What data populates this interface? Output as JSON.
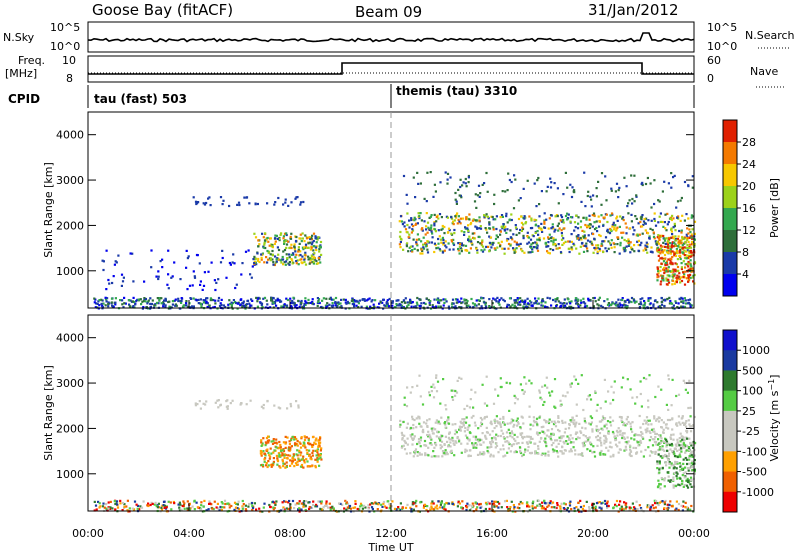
{
  "header": {
    "station": "Goose Bay (fitACF)",
    "beam": "Beam 09",
    "date": "31/Jan/2012"
  },
  "summary": {
    "nsky_label": "N.Sky",
    "nsky_ticks": [
      "10^5",
      "10^0"
    ],
    "nsearch_label": "N.Search",
    "nsearch_ticks": [
      "10^5",
      "10^0"
    ],
    "freq_label_1": "Freq.",
    "freq_label_2": "[MHz]",
    "freq_ticks": [
      "10",
      "8"
    ],
    "nave_label": "Nave",
    "nave_ticks": [
      "60",
      "0"
    ],
    "cpid_label": "CPID",
    "cpid_segments": [
      {
        "label": "tau (fast) 503",
        "start_hour": 0
      },
      {
        "label": "themis (tau) 3310",
        "start_hour": 12
      }
    ]
  },
  "colors": {
    "power": [
      "#0000ee",
      "#1a3aa8",
      "#2e6e3a",
      "#33a84f",
      "#9cd21a",
      "#f7c800",
      "#f47a00",
      "#e02000"
    ],
    "velocity": [
      "#ee0000",
      "#f06000",
      "#ffa000",
      "#c8c8c0",
      "#c8c8c0",
      "#55cc44",
      "#2e7a2e",
      "#1a3aa0",
      "#1010cc"
    ],
    "scatter_power": "#2a4aa0",
    "scatter_velocity": "#c8c8c0"
  },
  "chart_data": [
    {
      "type": "heatmap",
      "panel": "power",
      "ylabel": "Slant Range [km]",
      "xlabel": "",
      "x_range_hours": [
        0,
        24
      ],
      "ylim": [
        180,
        4500
      ],
      "y_ticks": [
        "1000",
        "2000",
        "3000",
        "4000"
      ],
      "colorbar_label": "Power [dB]",
      "colorbar_ticks": [
        "4",
        "8",
        "12",
        "16",
        "20",
        "24",
        "28"
      ],
      "features": [
        {
          "hours": [
            6.5,
            9.2
          ],
          "range_km": [
            1150,
            1850
          ],
          "level": "moderate-high"
        },
        {
          "hours": [
            12.3,
            24
          ],
          "range_km": [
            1400,
            2300
          ],
          "level": "moderate"
        },
        {
          "hours": [
            22.5,
            24
          ],
          "range_km": [
            700,
            1800
          ],
          "level": "high"
        },
        {
          "hours": [
            0,
            24
          ],
          "range_km": [
            200,
            450
          ],
          "level": "low"
        }
      ]
    },
    {
      "type": "heatmap",
      "panel": "velocity",
      "ylabel": "Slant Range [km]",
      "xlabel": "Time UT",
      "x_range_hours": [
        0,
        24
      ],
      "ylim": [
        180,
        4500
      ],
      "y_ticks": [
        "1000",
        "2000",
        "3000",
        "4000"
      ],
      "x_ticks": [
        "00:00",
        "04:00",
        "08:00",
        "12:00",
        "16:00",
        "20:00",
        "00:00"
      ],
      "colorbar_label": "Velocity [m s^-1]",
      "colorbar_ticks": [
        "-1000",
        "-500",
        "-100",
        "-25",
        "25",
        "100",
        "500",
        "1000"
      ],
      "features": [
        {
          "hours": [
            6.8,
            9.2
          ],
          "range_km": [
            1150,
            1850
          ],
          "velocity": "-500 to -100"
        },
        {
          "hours": [
            12.3,
            24
          ],
          "range_km": [
            1400,
            2300
          ],
          "velocity": "-25 to 25"
        }
      ]
    }
  ]
}
